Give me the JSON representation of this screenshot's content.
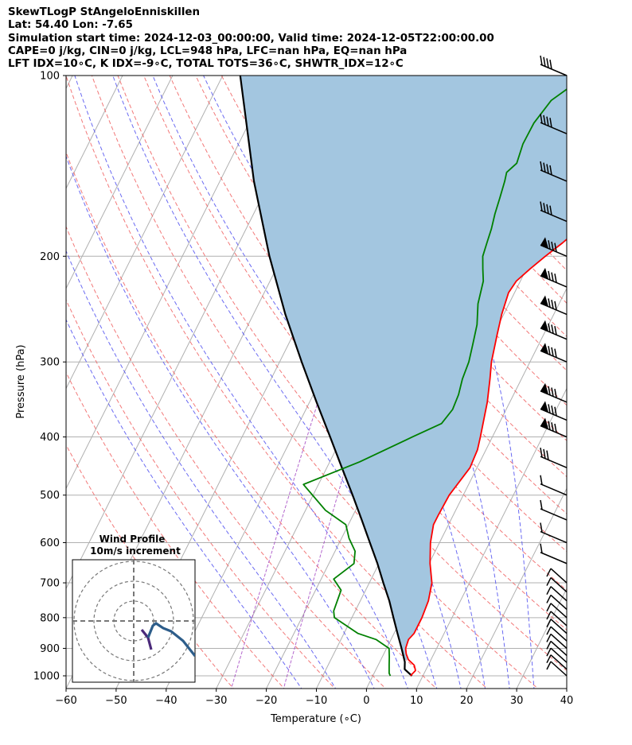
{
  "header": {
    "title": "SkewTLogP StAngeloEnniskillen",
    "location": "Lat: 54.40   Lon: -7.65",
    "times": "Simulation start time: 2024-12-03_00:00:00, Valid time: 2024-12-05T22:00:00.00",
    "indices1": "CAPE=0 j/kg, CIN=0 j/kg, LCL=948 hPa, LFC=nan hPa, EQ=nan hPa",
    "indices2": "LFT IDX=10∘C, K IDX=-9∘C, TOTAL TOTS=36∘C, SHWTR_IDX=12∘C"
  },
  "chart_data": {
    "type": "line",
    "title": "SkewTLogP StAngeloEnniskillen",
    "xlabel": "Temperature (∘C)",
    "ylabel": "Pressure (hPa)",
    "xlim": [
      -60,
      40
    ],
    "ylim": [
      1050,
      100
    ],
    "y_scale": "log",
    "grid": true,
    "x_ticks": [
      -60,
      -50,
      -40,
      -30,
      -20,
      -10,
      0,
      10,
      20,
      30,
      40
    ],
    "x_tick_labels": [
      "−60",
      "−50",
      "−40",
      "−30",
      "−20",
      "−10",
      "0",
      "10",
      "20",
      "30",
      "40"
    ],
    "y_ticks": [
      1000,
      900,
      800,
      700,
      600,
      500,
      400,
      300,
      200,
      100
    ],
    "y_tick_labels": [
      "1000",
      "900",
      "800",
      "700",
      "600",
      "500",
      "400",
      "300",
      "200",
      "100"
    ],
    "colors": {
      "temperature": "#ff0000",
      "dewpoint": "#008000",
      "parcel": "#000000",
      "shade": "#a3c6e0",
      "isotherm": "#b0b0b0",
      "dry_adiabat": "#f06060",
      "moist_adiabat": "#5050f0",
      "mixing_ratio": "#a040c0"
    },
    "series": [
      {
        "role": "temperature",
        "points": [
          [
            1000,
            7.5
          ],
          [
            980,
            8.0
          ],
          [
            960,
            7.2
          ],
          [
            940,
            5.5
          ],
          [
            920,
            4.5
          ],
          [
            900,
            3.8
          ],
          [
            870,
            3.5
          ],
          [
            850,
            4.0
          ],
          [
            800,
            4.0
          ],
          [
            750,
            3.6
          ],
          [
            700,
            2.5
          ],
          [
            650,
            0.2
          ],
          [
            600,
            -1.8
          ],
          [
            560,
            -3.0
          ],
          [
            540,
            -3.0
          ],
          [
            500,
            -2.8
          ],
          [
            450,
            -1.4
          ],
          [
            420,
            -1.7
          ],
          [
            400,
            -2.4
          ],
          [
            350,
            -4.5
          ],
          [
            320,
            -6.3
          ],
          [
            300,
            -7.7
          ],
          [
            270,
            -9.3
          ],
          [
            250,
            -10.4
          ],
          [
            230,
            -11.2
          ],
          [
            220,
            -10.8
          ],
          [
            210,
            -9.3
          ],
          [
            200,
            -7.5
          ],
          [
            190,
            -5.4
          ],
          [
            180,
            -3.5
          ],
          [
            170,
            -2.4
          ],
          [
            160,
            -1.0
          ],
          [
            150,
            0.3
          ],
          [
            140,
            1.6
          ],
          [
            130,
            3.3
          ],
          [
            120,
            5.0
          ],
          [
            110,
            6.6
          ],
          [
            100,
            7.8
          ]
        ]
      },
      {
        "role": "dewpoint",
        "points": [
          [
            1000,
            3.5
          ],
          [
            990,
            3.0
          ],
          [
            960,
            2.2
          ],
          [
            930,
            1.4
          ],
          [
            900,
            0.5
          ],
          [
            870,
            -3.0
          ],
          [
            850,
            -7.2
          ],
          [
            800,
            -13.5
          ],
          [
            780,
            -14.3
          ],
          [
            720,
            -14.9
          ],
          [
            690,
            -17.5
          ],
          [
            650,
            -15.0
          ],
          [
            620,
            -16.0
          ],
          [
            590,
            -18.5
          ],
          [
            560,
            -20.5
          ],
          [
            530,
            -26.0
          ],
          [
            480,
            -33.0
          ],
          [
            440,
            -24.0
          ],
          [
            400,
            -16.0
          ],
          [
            380,
            -11.5
          ],
          [
            360,
            -10.7
          ],
          [
            340,
            -11.0
          ],
          [
            320,
            -11.8
          ],
          [
            300,
            -12.2
          ],
          [
            280,
            -13.2
          ],
          [
            260,
            -14.3
          ],
          [
            240,
            -16.2
          ],
          [
            220,
            -17.4
          ],
          [
            210,
            -18.7
          ],
          [
            200,
            -20.0
          ],
          [
            190,
            -20.5
          ],
          [
            180,
            -21.0
          ],
          [
            170,
            -21.8
          ],
          [
            160,
            -22.4
          ],
          [
            150,
            -23.1
          ],
          [
            145,
            -23.6
          ],
          [
            140,
            -22.5
          ],
          [
            130,
            -23.2
          ],
          [
            120,
            -23.1
          ],
          [
            110,
            -21.9
          ],
          [
            100,
            -17.5
          ]
        ]
      },
      {
        "role": "parcel",
        "points": [
          [
            1000,
            7.8
          ],
          [
            975,
            5.7
          ],
          [
            948,
            5.0
          ],
          [
            900,
            3.0
          ],
          [
            850,
            0.7
          ],
          [
            800,
            -1.7
          ],
          [
            750,
            -4.2
          ],
          [
            700,
            -7.2
          ],
          [
            650,
            -10.3
          ],
          [
            600,
            -13.9
          ],
          [
            550,
            -17.8
          ],
          [
            500,
            -22.1
          ],
          [
            450,
            -27.0
          ],
          [
            400,
            -32.4
          ],
          [
            350,
            -38.6
          ],
          [
            300,
            -45.6
          ],
          [
            250,
            -53.6
          ],
          [
            200,
            -62.6
          ],
          [
            150,
            -73.2
          ],
          [
            100,
            -86.5
          ]
        ]
      }
    ],
    "inset": {
      "title": "Wind Profile",
      "subtitle": "10m/s increment"
    }
  }
}
